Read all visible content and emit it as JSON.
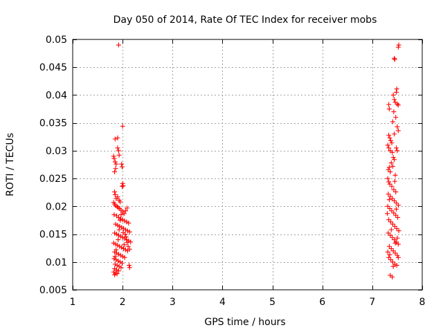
{
  "chart_data": {
    "type": "scatter",
    "title": "Day 050 of 2014, Rate Of TEC Index for receiver mobs",
    "xlabel": "GPS time / hours",
    "ylabel": "ROTI / TECUs",
    "xlim": [
      1,
      8
    ],
    "ylim": [
      0.005,
      0.05
    ],
    "x_ticks": [
      1,
      2,
      3,
      4,
      5,
      6,
      7,
      8
    ],
    "x_tick_labels": [
      "1",
      "2",
      "3",
      "4",
      "5",
      "6",
      "7",
      "8"
    ],
    "y_ticks": [
      0.005,
      0.01,
      0.015,
      0.02,
      0.025,
      0.03,
      0.035,
      0.04,
      0.045,
      0.05
    ],
    "y_tick_labels": [
      "0.005",
      "0.01",
      "0.015",
      "0.02",
      "0.025",
      "0.03",
      "0.035",
      "0.04",
      "0.045",
      "0.05"
    ],
    "grid": true,
    "marker": "+",
    "marker_color": "#ff0000",
    "series": [
      {
        "name": "ROTI",
        "points": [
          [
            1.92,
            0.049
          ],
          [
            2.0,
            0.0344
          ],
          [
            1.85,
            0.0321
          ],
          [
            1.9,
            0.0323
          ],
          [
            1.9,
            0.0305
          ],
          [
            1.92,
            0.03
          ],
          [
            1.93,
            0.0292
          ],
          [
            1.82,
            0.029
          ],
          [
            1.83,
            0.0286
          ],
          [
            1.85,
            0.028
          ],
          [
            1.87,
            0.0276
          ],
          [
            1.86,
            0.0268
          ],
          [
            1.84,
            0.0262
          ],
          [
            1.98,
            0.0276
          ],
          [
            1.99,
            0.0271
          ],
          [
            2.0,
            0.0241
          ],
          [
            2.01,
            0.0237
          ],
          [
            1.99,
            0.0236
          ],
          [
            1.84,
            0.0226
          ],
          [
            1.85,
            0.0221
          ],
          [
            1.87,
            0.0214
          ],
          [
            1.9,
            0.0217
          ],
          [
            1.93,
            0.0211
          ],
          [
            1.95,
            0.0208
          ],
          [
            1.82,
            0.0207
          ],
          [
            1.84,
            0.0204
          ],
          [
            1.86,
            0.0201
          ],
          [
            1.89,
            0.02
          ],
          [
            1.91,
            0.0198
          ],
          [
            1.94,
            0.0196
          ],
          [
            1.97,
            0.0193
          ],
          [
            2.0,
            0.019
          ],
          [
            2.03,
            0.0187
          ],
          [
            2.06,
            0.0192
          ],
          [
            2.09,
            0.0197
          ],
          [
            1.83,
            0.0185
          ],
          [
            1.88,
            0.0183
          ],
          [
            1.92,
            0.018
          ],
          [
            1.96,
            0.0178
          ],
          [
            2.0,
            0.0176
          ],
          [
            2.04,
            0.0174
          ],
          [
            2.08,
            0.0172
          ],
          [
            2.12,
            0.017
          ],
          [
            1.86,
            0.0168
          ],
          [
            1.9,
            0.0166
          ],
          [
            1.94,
            0.0164
          ],
          [
            1.98,
            0.0162
          ],
          [
            2.02,
            0.016
          ],
          [
            2.06,
            0.0158
          ],
          [
            2.1,
            0.0156
          ],
          [
            2.14,
            0.0154
          ],
          [
            1.84,
            0.0152
          ],
          [
            1.88,
            0.015
          ],
          [
            1.92,
            0.0148
          ],
          [
            1.96,
            0.0146
          ],
          [
            2.0,
            0.0144
          ],
          [
            2.04,
            0.0142
          ],
          [
            2.08,
            0.014
          ],
          [
            2.12,
            0.0138
          ],
          [
            2.16,
            0.0136
          ],
          [
            1.82,
            0.0134
          ],
          [
            1.86,
            0.0132
          ],
          [
            1.9,
            0.013
          ],
          [
            1.94,
            0.0128
          ],
          [
            1.98,
            0.0126
          ],
          [
            2.02,
            0.0124
          ],
          [
            2.06,
            0.0122
          ],
          [
            2.1,
            0.012
          ],
          [
            2.14,
            0.0123
          ],
          [
            1.84,
            0.0118
          ],
          [
            1.88,
            0.0116
          ],
          [
            1.92,
            0.0114
          ],
          [
            1.96,
            0.0112
          ],
          [
            2.0,
            0.011
          ],
          [
            2.04,
            0.0108
          ],
          [
            1.83,
            0.0106
          ],
          [
            1.87,
            0.0104
          ],
          [
            1.91,
            0.0102
          ],
          [
            1.95,
            0.01
          ],
          [
            1.99,
            0.0098
          ],
          [
            1.85,
            0.0096
          ],
          [
            1.89,
            0.0094
          ],
          [
            1.93,
            0.0092
          ],
          [
            1.97,
            0.009
          ],
          [
            1.84,
            0.0088
          ],
          [
            1.88,
            0.0086
          ],
          [
            1.92,
            0.0084
          ],
          [
            1.82,
            0.0082
          ],
          [
            1.86,
            0.008
          ],
          [
            1.84,
            0.0077
          ],
          [
            1.89,
            0.0079
          ],
          [
            2.13,
            0.0094
          ],
          [
            2.14,
            0.009
          ],
          [
            2.05,
            0.015
          ],
          [
            2.07,
            0.0145
          ],
          [
            2.09,
            0.0135
          ],
          [
            2.11,
            0.0128
          ],
          [
            2.03,
            0.0131
          ],
          [
            2.01,
            0.0153
          ],
          [
            1.95,
            0.0175
          ],
          [
            1.97,
            0.0185
          ],
          [
            1.93,
            0.0158
          ],
          [
            1.91,
            0.014
          ],
          [
            1.87,
            0.0122
          ],
          [
            1.85,
            0.011
          ],
          [
            7.53,
            0.049
          ],
          [
            7.52,
            0.0486
          ],
          [
            7.44,
            0.0466
          ],
          [
            7.45,
            0.0464
          ],
          [
            7.49,
            0.0411
          ],
          [
            7.48,
            0.0405
          ],
          [
            7.42,
            0.04
          ],
          [
            7.44,
            0.0392
          ],
          [
            7.46,
            0.0387
          ],
          [
            7.5,
            0.0384
          ],
          [
            7.52,
            0.0382
          ],
          [
            7.33,
            0.0383
          ],
          [
            7.34,
            0.0375
          ],
          [
            7.43,
            0.037
          ],
          [
            7.47,
            0.036
          ],
          [
            7.41,
            0.0352
          ],
          [
            7.5,
            0.0343
          ],
          [
            7.52,
            0.0336
          ],
          [
            7.44,
            0.033
          ],
          [
            7.33,
            0.0328
          ],
          [
            7.35,
            0.0323
          ],
          [
            7.37,
            0.0318
          ],
          [
            7.39,
            0.0314
          ],
          [
            7.31,
            0.031
          ],
          [
            7.33,
            0.0305
          ],
          [
            7.36,
            0.03
          ],
          [
            7.4,
            0.0297
          ],
          [
            7.48,
            0.0305
          ],
          [
            7.5,
            0.03
          ],
          [
            7.42,
            0.0288
          ],
          [
            7.44,
            0.0284
          ],
          [
            7.38,
            0.0278
          ],
          [
            7.34,
            0.027
          ],
          [
            7.32,
            0.0266
          ],
          [
            7.36,
            0.0262
          ],
          [
            7.46,
            0.0256
          ],
          [
            7.31,
            0.025
          ],
          [
            7.33,
            0.0244
          ],
          [
            7.35,
            0.024
          ],
          [
            7.39,
            0.0236
          ],
          [
            7.43,
            0.023
          ],
          [
            7.47,
            0.0226
          ],
          [
            7.32,
            0.0222
          ],
          [
            7.36,
            0.0218
          ],
          [
            7.4,
            0.0214
          ],
          [
            7.44,
            0.021
          ],
          [
            7.48,
            0.0206
          ],
          [
            7.52,
            0.0202
          ],
          [
            7.31,
            0.02
          ],
          [
            7.35,
            0.0196
          ],
          [
            7.39,
            0.0192
          ],
          [
            7.43,
            0.0188
          ],
          [
            7.47,
            0.0184
          ],
          [
            7.51,
            0.018
          ],
          [
            7.33,
            0.0176
          ],
          [
            7.37,
            0.0172
          ],
          [
            7.41,
            0.0168
          ],
          [
            7.45,
            0.0164
          ],
          [
            7.49,
            0.016
          ],
          [
            7.53,
            0.0156
          ],
          [
            7.32,
            0.0152
          ],
          [
            7.36,
            0.0148
          ],
          [
            7.4,
            0.0144
          ],
          [
            7.44,
            0.014
          ],
          [
            7.48,
            0.0136
          ],
          [
            7.52,
            0.0132
          ],
          [
            7.34,
            0.0128
          ],
          [
            7.38,
            0.0124
          ],
          [
            7.42,
            0.012
          ],
          [
            7.46,
            0.0116
          ],
          [
            7.5,
            0.0112
          ],
          [
            7.33,
            0.0108
          ],
          [
            7.37,
            0.0104
          ],
          [
            7.41,
            0.01
          ],
          [
            7.45,
            0.0096
          ],
          [
            7.49,
            0.0094
          ],
          [
            7.31,
            0.0118
          ],
          [
            7.35,
            0.0113
          ],
          [
            7.52,
            0.0108
          ],
          [
            7.42,
            0.0092
          ],
          [
            7.36,
            0.0076
          ],
          [
            7.4,
            0.0073
          ],
          [
            7.46,
            0.0134
          ],
          [
            7.5,
            0.0143
          ],
          [
            7.38,
            0.0158
          ],
          [
            7.3,
            0.0187
          ],
          [
            7.48,
            0.0195
          ],
          [
            7.34,
            0.0212
          ],
          [
            7.45,
            0.0245
          ],
          [
            7.41,
            0.0272
          ]
        ]
      }
    ]
  }
}
